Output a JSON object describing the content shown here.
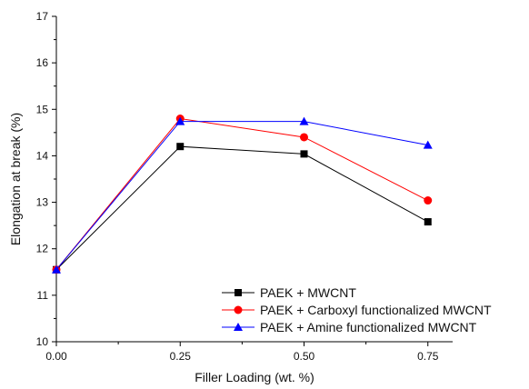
{
  "chart_data": {
    "type": "line",
    "xlabel": "Filler Loading (wt. %)",
    "ylabel": "Elongation at break (%)",
    "x": [
      0.0,
      0.25,
      0.5,
      0.75
    ],
    "x_tick_labels": [
      "0.00",
      "0.25",
      "0.50",
      "0.75"
    ],
    "y_tick_labels": [
      "10",
      "11",
      "12",
      "13",
      "14",
      "15",
      "16",
      "17"
    ],
    "xlim": [
      0.0,
      0.8
    ],
    "ylim": [
      10,
      17
    ],
    "grid": false,
    "legend_position": "bottom-right",
    "series": [
      {
        "name": "PAEK + MWCNT",
        "values": [
          11.55,
          14.2,
          14.04,
          12.58
        ],
        "color": "#000000",
        "marker": "square"
      },
      {
        "name": "PAEK + Carboxyl functionalized MWCNT",
        "values": [
          11.55,
          14.8,
          14.4,
          13.04
        ],
        "color": "#ff0000",
        "marker": "circle"
      },
      {
        "name": "PAEK + Amine functionalized MWCNT",
        "values": [
          11.55,
          14.74,
          14.74,
          14.23
        ],
        "color": "#0000ff",
        "marker": "triangle"
      }
    ]
  }
}
